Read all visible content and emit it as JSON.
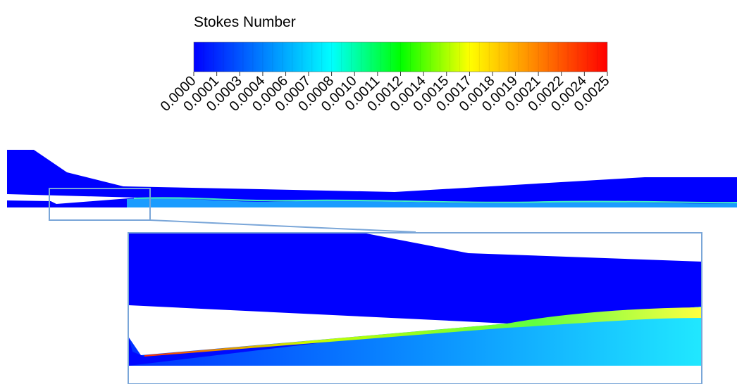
{
  "chart_data": {
    "type": "contour",
    "title": "Stokes Number",
    "colormap": [
      "#0000ff",
      "#0080ff",
      "#00ffff",
      "#00ff00",
      "#ffff00",
      "#ff8000",
      "#ff0000"
    ],
    "clim": [
      0,
      0.0025
    ],
    "cticks": [
      {
        "value": 0,
        "label": "0.0000"
      },
      {
        "value": 0.000139,
        "label": "0.0001"
      },
      {
        "value": 0.000278,
        "label": "0.0003"
      },
      {
        "value": 0.000417,
        "label": "0.0004"
      },
      {
        "value": 0.000556,
        "label": "0.0006"
      },
      {
        "value": 0.000694,
        "label": "0.0007"
      },
      {
        "value": 0.000833,
        "label": "0.0008"
      },
      {
        "value": 0.000972,
        "label": "0.0010"
      },
      {
        "value": 0.001111,
        "label": "0.0011"
      },
      {
        "value": 0.00125,
        "label": "0.0012"
      },
      {
        "value": 0.001389,
        "label": "0.0014"
      },
      {
        "value": 0.001528,
        "label": "0.0015"
      },
      {
        "value": 0.001667,
        "label": "0.0017"
      },
      {
        "value": 0.001806,
        "label": "0.0018"
      },
      {
        "value": 0.001944,
        "label": "0.0019"
      },
      {
        "value": 0.002083,
        "label": "0.0021"
      },
      {
        "value": 0.002222,
        "label": "0.0022"
      },
      {
        "value": 0.002361,
        "label": "0.0024"
      },
      {
        "value": 0.0025,
        "label": "0.0025"
      }
    ]
  }
}
